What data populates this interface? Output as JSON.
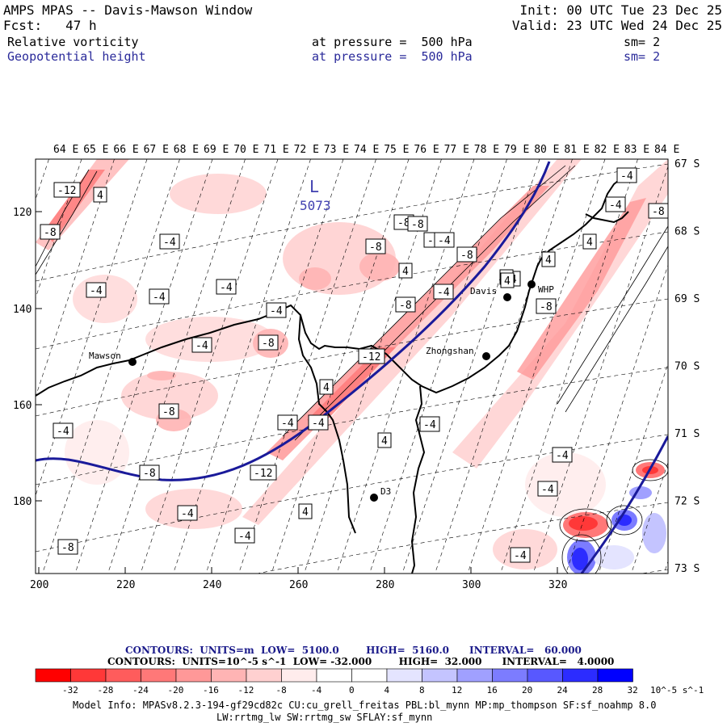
{
  "header": {
    "title": "AMPS MPAS -- Davis-Mawson Window",
    "forecast": "Fcst:   47 h",
    "init": "Init: 00 UTC Tue 23 Dec 25",
    "valid": "Valid: 23 UTC Wed 24 Dec 25",
    "field1_name": "Relative vorticity",
    "field1_level": "at pressure =  500 hPa",
    "field1_sm": "sm= 2",
    "field2_name": "Geopotential height",
    "field2_level": "at pressure =  500 hPa",
    "field2_sm": "sm= 2"
  },
  "map": {
    "top_lon_labels": [
      "64 E",
      "65 E",
      "66 E",
      "67 E",
      "68 E",
      "69 E",
      "70 E",
      "71 E",
      "72 E",
      "73 E",
      "74 E",
      "75 E",
      "76 E",
      "77 E",
      "78 E",
      "79 E",
      "80 E",
      "81 E",
      "82 E",
      "83 E",
      "84 E"
    ],
    "right_lat_labels": [
      "67 S",
      "68 S",
      "69 S",
      "70 S",
      "71 S",
      "72 S",
      "73 S"
    ],
    "left_y_labels": [
      "120",
      "140",
      "160",
      "180"
    ],
    "bottom_x_labels": [
      "200",
      "220",
      "240",
      "260",
      "280",
      "300",
      "320"
    ],
    "stations": [
      {
        "name": "Mawson"
      },
      {
        "name": "Davis"
      },
      {
        "name": "WHP"
      },
      {
        "name": "Zhongshan"
      },
      {
        "name": "D3"
      }
    ],
    "low_label": "L",
    "low_value": "5073",
    "contour_labels": [
      "-12",
      "4",
      "-8",
      "-4",
      "-4",
      "-4",
      "-4",
      "-4",
      "-8",
      "-4",
      "-8",
      "-8",
      "-4",
      "-8",
      "4",
      "-4",
      "-8",
      "-8",
      "-4",
      "4",
      "4",
      "-4",
      "-4",
      "-12",
      "4",
      "-4",
      "-8",
      "-4",
      "-12",
      "4",
      "-4",
      "-8",
      "-4",
      "-4",
      "4",
      "-4",
      "-4",
      "-4",
      "-8",
      "-4",
      "-8",
      "4",
      "4",
      "-8",
      "-4"
    ]
  },
  "legend": {
    "line1": "CONTOURS:  UNITS=m  LOW=  5100.0        HIGH=  5160.0      INTERVAL=   60.000",
    "line2": "CONTOURS:  UNITS=10^-5 s^-1  LOW= -32.000        HIGH=  32.000      INTERVAL=   4.0000",
    "ticks": [
      "-32",
      "-28",
      "-24",
      "-20",
      "-16",
      "-12",
      "-8",
      "-4",
      "0",
      "4",
      "8",
      "12",
      "16",
      "20",
      "24",
      "28",
      "32"
    ],
    "units": "10^-5 s^-1",
    "colors": [
      "#ff0000",
      "#ff3838",
      "#ff5c5c",
      "#ff7878",
      "#ff9898",
      "#ffb4b4",
      "#ffd0d0",
      "#ffecec",
      "#ffffff",
      "#ffffff",
      "#e4e4ff",
      "#c4c4ff",
      "#a0a0ff",
      "#7c7cff",
      "#5858ff",
      "#2c2cff",
      "#0000ff"
    ]
  },
  "footer": {
    "line1": "Model Info: MPASv8.2.3-194-gf29cd82c CU:cu_grell_freitas PBL:bl_mynn MP:mp_thompson SF:sf_noahmp 8.0",
    "line2": "LW:rrtmg_lw SW:rrtmg_sw SFLAY:sf_mynn"
  }
}
